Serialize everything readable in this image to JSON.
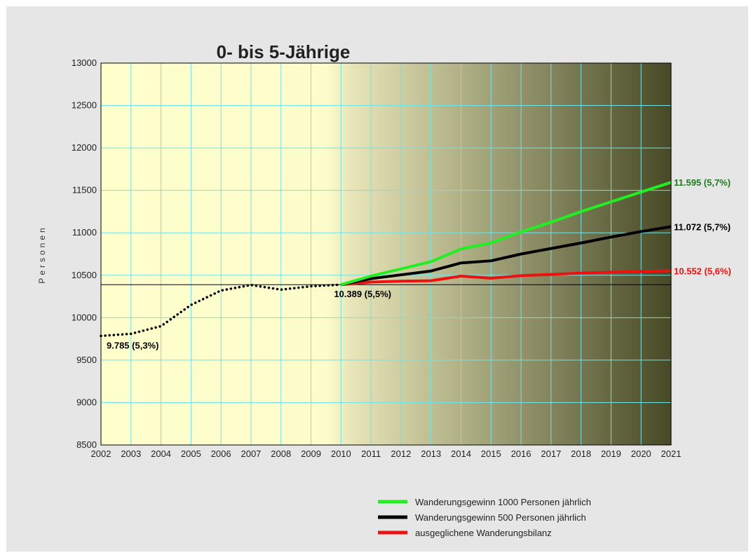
{
  "chart_data": {
    "type": "line",
    "title": "0- bis 5-Jährige",
    "ylabel": "Personen",
    "xlabel": "",
    "ylim": [
      8500,
      13000
    ],
    "yticks": [
      8500,
      9000,
      9500,
      10000,
      10500,
      11000,
      11500,
      12000,
      12500,
      13000
    ],
    "categories": [
      "2002",
      "2003",
      "2004",
      "2005",
      "2006",
      "2007",
      "2008",
      "2009",
      "2010",
      "2011",
      "2012",
      "2013",
      "2014",
      "2015",
      "2016",
      "2017",
      "2018",
      "2019",
      "2020",
      "2021"
    ],
    "grid": true,
    "legend_position": "bottom-right",
    "reference_line": 10389,
    "history": {
      "x": [
        "2002",
        "2003",
        "2004",
        "2005",
        "2006",
        "2007",
        "2008",
        "2009",
        "2010"
      ],
      "values": [
        9785,
        9810,
        9900,
        10150,
        10320,
        10385,
        10330,
        10370,
        10389
      ],
      "color": "#000000",
      "style": "dotted"
    },
    "series": [
      {
        "name": "Wanderungsgewinn 1000 Personen jährlich",
        "color": "#22ee22",
        "label_color": "#1e7a1e",
        "x": [
          "2010",
          "2011",
          "2012",
          "2013",
          "2014",
          "2015",
          "2016",
          "2017",
          "2018",
          "2019",
          "2020",
          "2021"
        ],
        "values": [
          10389,
          10490,
          10575,
          10660,
          10810,
          10880,
          11010,
          11125,
          11250,
          11365,
          11480,
          11595
        ]
      },
      {
        "name": "Wanderungsgewinn 500 Personen jährlich",
        "color": "#000000",
        "label_color": "#000000",
        "x": [
          "2010",
          "2011",
          "2012",
          "2013",
          "2014",
          "2015",
          "2016",
          "2017",
          "2018",
          "2019",
          "2020",
          "2021"
        ],
        "values": [
          10389,
          10460,
          10505,
          10550,
          10645,
          10670,
          10750,
          10815,
          10880,
          10950,
          11015,
          11072
        ]
      },
      {
        "name": "ausgeglichene Wanderungsbilanz",
        "color": "#ee1111",
        "label_color": "#ee1111",
        "x": [
          "2010",
          "2011",
          "2012",
          "2013",
          "2014",
          "2015",
          "2016",
          "2017",
          "2018",
          "2019",
          "2020",
          "2021"
        ],
        "values": [
          10389,
          10420,
          10430,
          10435,
          10490,
          10465,
          10495,
          10510,
          10525,
          10535,
          10545,
          10552
        ]
      }
    ],
    "annotations": [
      {
        "text": "9.785 (5,3%)",
        "x": "2002",
        "y": 9785,
        "color": "#000000",
        "anchor": "below-right"
      },
      {
        "text": "10.389 (5,5%)",
        "x": "2010",
        "y": 10389,
        "color": "#000000",
        "anchor": "below"
      },
      {
        "text": "11.595 (5,7%)",
        "x": "2021",
        "y": 11595,
        "color": "#1e7a1e",
        "anchor": "right"
      },
      {
        "text": "11.072 (5,7%)",
        "x": "2021",
        "y": 11072,
        "color": "#000000",
        "anchor": "right"
      },
      {
        "text": "10.552 (5,6%)",
        "x": "2021",
        "y": 10552,
        "color": "#ee1111",
        "anchor": "right"
      }
    ]
  }
}
